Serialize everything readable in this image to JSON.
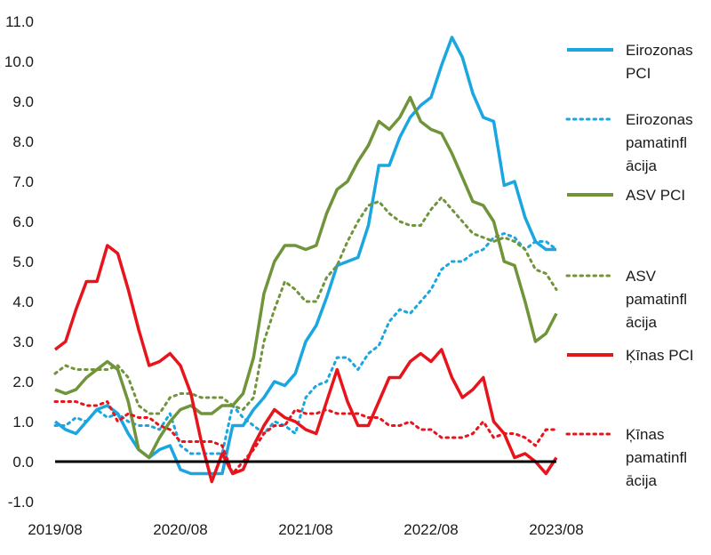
{
  "chart_data": {
    "type": "line",
    "x": [
      "2019/08",
      "2019/09",
      "2019/10",
      "2019/11",
      "2019/12",
      "2020/01",
      "2020/02",
      "2020/03",
      "2020/04",
      "2020/05",
      "2020/06",
      "2020/07",
      "2020/08",
      "2020/09",
      "2020/10",
      "2020/11",
      "2020/12",
      "2021/01",
      "2021/02",
      "2021/03",
      "2021/04",
      "2021/05",
      "2021/06",
      "2021/07",
      "2021/08",
      "2021/09",
      "2021/10",
      "2021/11",
      "2021/12",
      "2022/01",
      "2022/02",
      "2022/03",
      "2022/04",
      "2022/05",
      "2022/06",
      "2022/07",
      "2022/08",
      "2022/09",
      "2022/10",
      "2022/11",
      "2022/12",
      "2023/01",
      "2023/02",
      "2023/03",
      "2023/04",
      "2023/05",
      "2023/06",
      "2023/07",
      "2023/08"
    ],
    "x_tick_labels": [
      "2019/08",
      "2020/08",
      "2021/08",
      "2022/08",
      "2023/08"
    ],
    "ylim": [
      -1.0,
      11.0
    ],
    "y_ticks": [
      "-1.0",
      "0.0",
      "1.0",
      "2.0",
      "3.0",
      "4.0",
      "5.0",
      "6.0",
      "7.0",
      "8.0",
      "9.0",
      "10.0",
      "11.0"
    ],
    "zero_line": true,
    "grid": false,
    "legend_position": "right",
    "series": [
      {
        "name": "Eirozonas PCI",
        "color": "#1aa6e0",
        "style": "solid",
        "values": [
          1.0,
          0.8,
          0.7,
          1.0,
          1.3,
          1.4,
          1.2,
          0.7,
          0.3,
          0.1,
          0.3,
          0.4,
          -0.2,
          -0.3,
          -0.3,
          -0.3,
          -0.3,
          0.9,
          0.9,
          1.3,
          1.6,
          2.0,
          1.9,
          2.2,
          3.0,
          3.4,
          4.1,
          4.9,
          5.0,
          5.1,
          5.9,
          7.4,
          7.4,
          8.1,
          8.6,
          8.9,
          9.1,
          9.9,
          10.6,
          10.1,
          9.2,
          8.6,
          8.5,
          6.9,
          7.0,
          6.1,
          5.5,
          5.3,
          5.3
        ]
      },
      {
        "name": "Eirozonas pamatinflācija",
        "color": "#1aa6e0",
        "style": "dotted",
        "values": [
          0.9,
          0.9,
          1.1,
          1.0,
          1.3,
          1.1,
          1.2,
          1.0,
          0.9,
          0.9,
          0.8,
          1.2,
          0.4,
          0.2,
          0.2,
          0.2,
          0.2,
          1.4,
          1.1,
          0.9,
          0.7,
          1.0,
          0.9,
          0.7,
          1.6,
          1.9,
          2.0,
          2.6,
          2.6,
          2.3,
          2.7,
          2.9,
          3.5,
          3.8,
          3.7,
          4.0,
          4.3,
          4.8,
          5.0,
          5.0,
          5.2,
          5.3,
          5.6,
          5.7,
          5.6,
          5.3,
          5.5,
          5.5,
          5.3
        ]
      },
      {
        "name": "ASV PCI",
        "color": "#70943a",
        "style": "solid",
        "values": [
          1.8,
          1.7,
          1.8,
          2.1,
          2.3,
          2.5,
          2.3,
          1.5,
          0.3,
          0.1,
          0.6,
          1.0,
          1.3,
          1.4,
          1.2,
          1.2,
          1.4,
          1.4,
          1.7,
          2.6,
          4.2,
          5.0,
          5.4,
          5.4,
          5.3,
          5.4,
          6.2,
          6.8,
          7.0,
          7.5,
          7.9,
          8.5,
          8.3,
          8.6,
          9.1,
          8.5,
          8.3,
          8.2,
          7.7,
          7.1,
          6.5,
          6.4,
          6.0,
          5.0,
          4.9,
          4.0,
          3.0,
          3.2,
          3.7
        ]
      },
      {
        "name": "ASV pamatinflācija",
        "color": "#70943a",
        "style": "dotted",
        "values": [
          2.2,
          2.4,
          2.3,
          2.3,
          2.3,
          2.3,
          2.4,
          2.1,
          1.4,
          1.2,
          1.2,
          1.6,
          1.7,
          1.7,
          1.6,
          1.6,
          1.6,
          1.4,
          1.3,
          1.6,
          3.0,
          3.8,
          4.5,
          4.3,
          4.0,
          4.0,
          4.6,
          4.9,
          5.5,
          6.0,
          6.4,
          6.5,
          6.2,
          6.0,
          5.9,
          5.9,
          6.3,
          6.6,
          6.3,
          6.0,
          5.7,
          5.6,
          5.5,
          5.6,
          5.5,
          5.3,
          4.8,
          4.7,
          4.3
        ]
      },
      {
        "name": "Ķīnas PCI",
        "color": "#e8141c",
        "style": "solid",
        "values": [
          2.8,
          3.0,
          3.8,
          4.5,
          4.5,
          5.4,
          5.2,
          4.3,
          3.3,
          2.4,
          2.5,
          2.7,
          2.4,
          1.7,
          0.5,
          -0.5,
          0.2,
          -0.3,
          -0.2,
          0.4,
          0.9,
          1.3,
          1.1,
          1.0,
          0.8,
          0.7,
          1.5,
          2.3,
          1.5,
          0.9,
          0.9,
          1.5,
          2.1,
          2.1,
          2.5,
          2.7,
          2.5,
          2.8,
          2.1,
          1.6,
          1.8,
          2.1,
          1.0,
          0.7,
          0.1,
          0.2,
          0.0,
          -0.3,
          0.1
        ]
      },
      {
        "name": "Ķīnas pamatinflācija",
        "color": "#e8141c",
        "style": "dotted",
        "values": [
          1.5,
          1.5,
          1.5,
          1.4,
          1.4,
          1.5,
          1.0,
          1.2,
          1.1,
          1.1,
          0.9,
          0.8,
          0.5,
          0.5,
          0.5,
          0.5,
          0.4,
          -0.3,
          0.0,
          0.3,
          0.7,
          0.9,
          0.9,
          1.3,
          1.2,
          1.2,
          1.3,
          1.2,
          1.2,
          1.2,
          1.1,
          1.1,
          0.9,
          0.9,
          1.0,
          0.8,
          0.8,
          0.6,
          0.6,
          0.6,
          0.7,
          1.0,
          0.6,
          0.7,
          0.7,
          0.6,
          0.4,
          0.8,
          0.8
        ]
      }
    ],
    "legend": [
      {
        "lines": [
          "Eirozonas",
          "PCI"
        ]
      },
      {
        "lines": [
          "Eirozonas",
          "pamatinfl",
          "ācija"
        ]
      },
      {
        "lines": [
          "ASV PCI"
        ]
      },
      {
        "lines": [
          "ASV",
          "pamatinfl",
          "ācija"
        ]
      },
      {
        "lines": [
          "Ķīnas PCI"
        ]
      },
      {
        "lines": [
          "Ķīnas",
          "pamatinfl",
          "ācija"
        ]
      }
    ]
  }
}
